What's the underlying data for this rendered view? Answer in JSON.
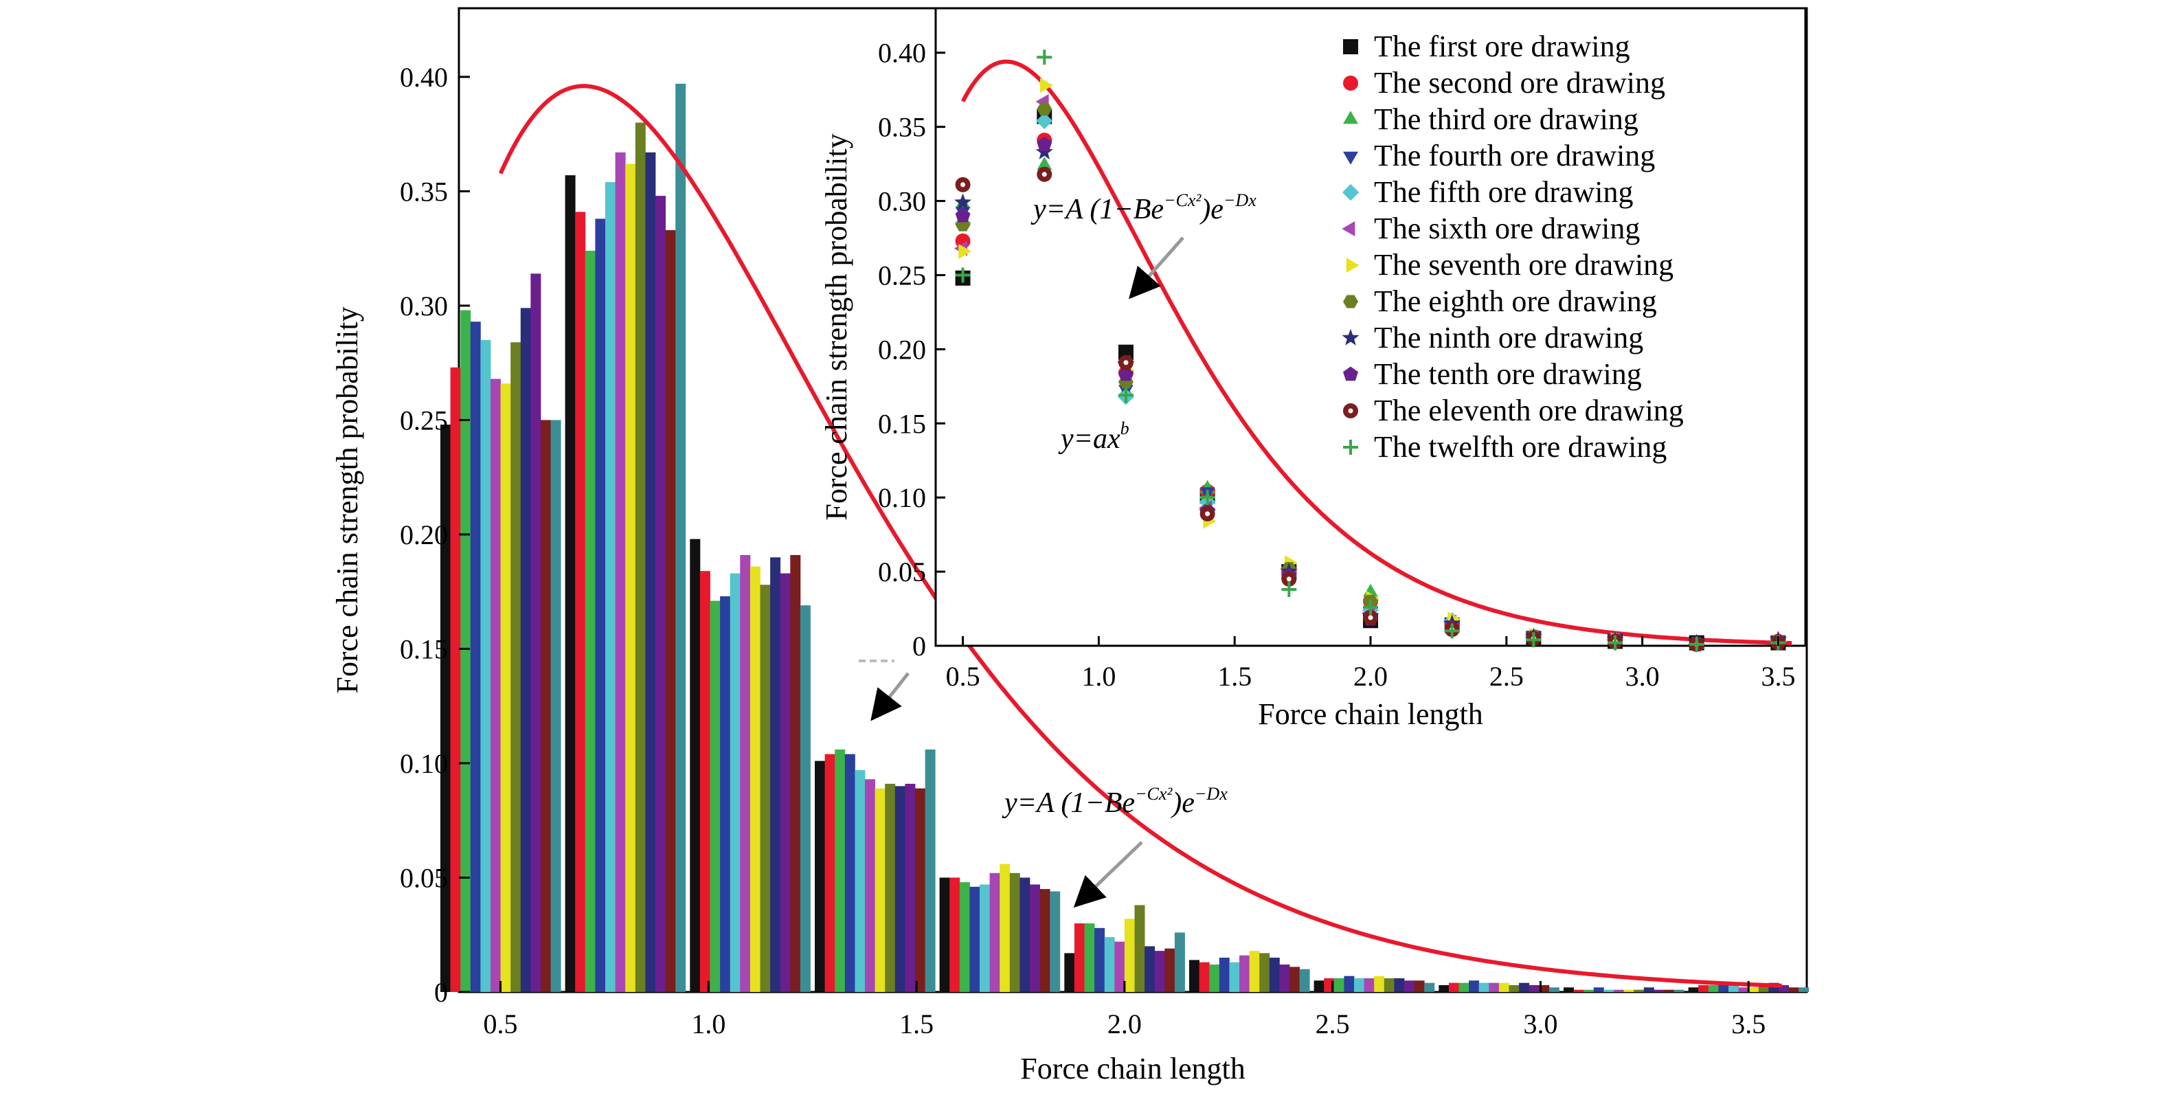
{
  "chart_data": [
    {
      "type": "bar",
      "xlabel": "Force chain length",
      "ylabel": "Force chain strength probability",
      "xlim": [
        0.4,
        3.64
      ],
      "ylim": [
        0,
        0.43
      ],
      "xticks": [
        0.5,
        1.0,
        1.5,
        2.0,
        2.5,
        3.0,
        3.5
      ],
      "xtick_labels": [
        "0.5",
        "1.0",
        "1.5",
        "2.0",
        "2.5",
        "3.0",
        "3.5"
      ],
      "yticks": [
        0,
        0.05,
        0.1,
        0.15,
        0.2,
        0.25,
        0.3,
        0.35,
        0.4
      ],
      "ytick_labels": [
        "0",
        "0.05",
        "0.10",
        "0.15",
        "0.20",
        "0.25",
        "0.30",
        "0.35",
        "0.40"
      ],
      "group_centers": [
        0.5,
        0.8,
        1.1,
        1.4,
        1.7,
        2.0,
        2.3,
        2.6,
        2.9,
        3.2,
        3.5
      ],
      "series": [
        {
          "values": [
            0.248,
            0.357,
            0.198,
            0.101,
            0.05,
            0.017,
            0.014,
            0.005,
            0.003,
            0.002,
            0.002
          ]
        },
        {
          "values": [
            0.273,
            0.341,
            0.184,
            0.104,
            0.05,
            0.03,
            0.013,
            0.006,
            0.004,
            0.001,
            0.003
          ]
        },
        {
          "values": [
            0.298,
            0.324,
            0.171,
            0.106,
            0.048,
            0.03,
            0.012,
            0.006,
            0.004,
            0.001,
            0.003
          ]
        },
        {
          "values": [
            0.293,
            0.338,
            0.173,
            0.104,
            0.046,
            0.028,
            0.015,
            0.007,
            0.005,
            0.002,
            0.004
          ]
        },
        {
          "values": [
            0.285,
            0.354,
            0.183,
            0.097,
            0.047,
            0.024,
            0.013,
            0.006,
            0.004,
            0.001,
            0.003
          ]
        },
        {
          "values": [
            0.268,
            0.367,
            0.191,
            0.093,
            0.052,
            0.022,
            0.016,
            0.006,
            0.004,
            0.001,
            0.002
          ]
        },
        {
          "values": [
            0.266,
            0.362,
            0.186,
            0.089,
            0.056,
            0.032,
            0.018,
            0.007,
            0.004,
            0.001,
            0.002
          ]
        },
        {
          "values": [
            0.284,
            0.38,
            0.178,
            0.091,
            0.052,
            0.038,
            0.017,
            0.006,
            0.003,
            0.001,
            0.003
          ]
        },
        {
          "values": [
            0.299,
            0.367,
            0.19,
            0.09,
            0.05,
            0.02,
            0.015,
            0.006,
            0.004,
            0.002,
            0.004
          ]
        },
        {
          "values": [
            0.314,
            0.348,
            0.183,
            0.091,
            0.047,
            0.018,
            0.012,
            0.005,
            0.003,
            0.001,
            0.003
          ]
        },
        {
          "values": [
            0.25,
            0.333,
            0.191,
            0.089,
            0.045,
            0.019,
            0.011,
            0.005,
            0.003,
            0.001,
            0.002
          ]
        },
        {
          "values": [
            0.25,
            0.397,
            0.169,
            0.106,
            0.044,
            0.026,
            0.01,
            0.004,
            0.002,
            0.001,
            0.002
          ]
        }
      ],
      "fit_curve": {
        "x_peak": 0.7,
        "y_peak": 0.396
      },
      "annotation": "y=A (1−Be−Cx²)e−Dx"
    },
    {
      "type": "scatter",
      "xlabel": "Force chain length",
      "ylabel": "Force chain strength probability",
      "xlim": [
        0.4,
        3.6
      ],
      "ylim": [
        0,
        0.43
      ],
      "xticks": [
        0.5,
        1.0,
        1.5,
        2.0,
        2.5,
        3.0,
        3.5
      ],
      "xtick_labels": [
        "0.5",
        "1.0",
        "1.5",
        "2.0",
        "2.5",
        "3.0",
        "3.5"
      ],
      "yticks": [
        0,
        0.05,
        0.1,
        0.15,
        0.2,
        0.25,
        0.3,
        0.35,
        0.4
      ],
      "ytick_labels": [
        "0",
        "0.05",
        "0.10",
        "0.15",
        "0.20",
        "0.25",
        "0.30",
        "0.35",
        "0.40"
      ],
      "x": [
        0.5,
        0.8,
        1.1,
        1.4,
        1.7,
        2.0,
        2.3,
        2.6,
        2.9,
        3.2,
        3.5
      ],
      "series": [
        {
          "name": "The first ore drawing",
          "marker": "square",
          "color": "#111111",
          "values": [
            0.248,
            0.357,
            0.198,
            0.101,
            0.05,
            0.017,
            0.014,
            0.005,
            0.003,
            0.002,
            0.002
          ]
        },
        {
          "name": "The second ore drawing",
          "marker": "circle",
          "color": "#e8192c",
          "values": [
            0.273,
            0.341,
            0.184,
            0.104,
            0.05,
            0.03,
            0.013,
            0.006,
            0.004,
            0.001,
            0.003
          ]
        },
        {
          "name": "The third ore drawing",
          "marker": "triangle-up",
          "color": "#3cb34a",
          "values": [
            0.298,
            0.324,
            0.171,
            0.106,
            0.048,
            0.036,
            0.012,
            0.006,
            0.004,
            0.001,
            0.003
          ]
        },
        {
          "name": "The fourth ore drawing",
          "marker": "triangle-down",
          "color": "#2b3f9e",
          "values": [
            0.293,
            0.338,
            0.173,
            0.104,
            0.046,
            0.028,
            0.015,
            0.007,
            0.005,
            0.002,
            0.004
          ]
        },
        {
          "name": "The fifth ore drawing",
          "marker": "diamond",
          "color": "#54c4cf",
          "values": [
            0.285,
            0.354,
            0.168,
            0.097,
            0.047,
            0.024,
            0.017,
            0.006,
            0.004,
            0.001,
            0.003
          ]
        },
        {
          "name": "The sixth ore drawing",
          "marker": "triangle-left",
          "color": "#a846b4",
          "values": [
            0.268,
            0.367,
            0.191,
            0.093,
            0.052,
            0.022,
            0.016,
            0.006,
            0.004,
            0.001,
            0.002
          ]
        },
        {
          "name": "The seventh ore drawing",
          "marker": "triangle-right",
          "color": "#e6e21e",
          "values": [
            0.266,
            0.378,
            0.186,
            0.084,
            0.056,
            0.032,
            0.018,
            0.007,
            0.004,
            0.001,
            0.003
          ]
        },
        {
          "name": "The eighth ore drawing",
          "marker": "hexagon",
          "color": "#6b7f22",
          "values": [
            0.284,
            0.362,
            0.178,
            0.091,
            0.052,
            0.03,
            0.012,
            0.006,
            0.003,
            0.001,
            0.003
          ]
        },
        {
          "name": "The ninth ore drawing",
          "marker": "star",
          "color": "#2a2e7a",
          "values": [
            0.299,
            0.333,
            0.19,
            0.09,
            0.05,
            0.02,
            0.015,
            0.006,
            0.004,
            0.002,
            0.004
          ]
        },
        {
          "name": "The tenth ore drawing",
          "marker": "pentagon",
          "color": "#6a1f8e",
          "values": [
            0.29,
            0.338,
            0.183,
            0.091,
            0.047,
            0.018,
            0.012,
            0.005,
            0.003,
            0.001,
            0.003
          ]
        },
        {
          "name": "The eleventh ore drawing",
          "marker": "circle-dot",
          "color": "#7a1e1e",
          "values": [
            0.311,
            0.318,
            0.191,
            0.089,
            0.045,
            0.019,
            0.011,
            0.005,
            0.003,
            0.001,
            0.002
          ]
        },
        {
          "name": "The twelfth ore drawing",
          "marker": "plus",
          "color": "#3aa64a",
          "values": [
            0.25,
            0.397,
            0.169,
            0.1,
            0.038,
            0.026,
            0.01,
            0.004,
            0.002,
            0.001,
            0.002
          ]
        }
      ],
      "fit_curve": {
        "x_peak": 0.66,
        "y_peak": 0.394
      },
      "annotations": [
        "y=A (1−Be−Cx²)e−Dx",
        "y=axᵇ"
      ]
    }
  ],
  "annotations": {
    "main_eq": {
      "base": "y=A (1−Be",
      "exp1": "−Cx²",
      "mid": ")e",
      "exp2": "−Dx"
    },
    "inset_eq": {
      "base": "y=A (1−Be",
      "exp1": "−Cx²",
      "mid": ")e",
      "exp2": "−Dx"
    },
    "power_eq": {
      "base": "y=ax",
      "exp": "b"
    }
  },
  "colors": {
    "bars": [
      "#111111",
      "#e8192c",
      "#3cb34a",
      "#2b3f9e",
      "#54c4cf",
      "#a846b4",
      "#e6e21e",
      "#6b7f22",
      "#2a2e7a",
      "#6a1f8e",
      "#7a1e1e",
      "#3c8e96"
    ],
    "fit": "#e8192c",
    "arrow": "#999999"
  }
}
